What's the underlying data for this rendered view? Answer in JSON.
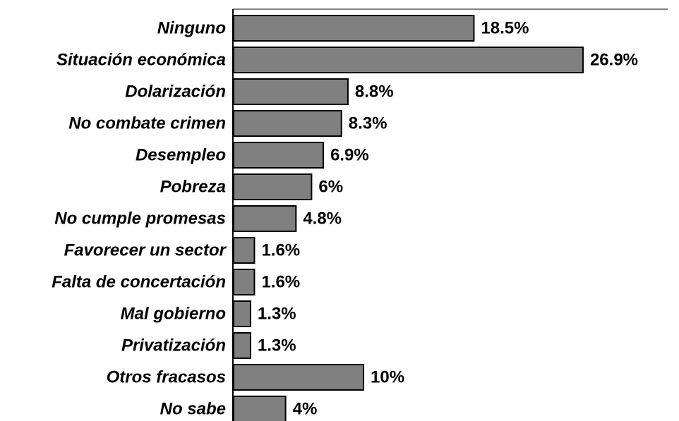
{
  "chart_data": {
    "type": "bar",
    "orientation": "horizontal",
    "categories": [
      "Ninguno",
      "Situación económica",
      "Dolarización",
      "No combate crimen",
      "Desempleo",
      "Pobreza",
      "No cumple promesas",
      "Favorecer un sector",
      "Falta de concertación",
      "Mal gobierno",
      "Privatización",
      "Otros fracasos",
      "No sabe"
    ],
    "values": [
      18.5,
      26.9,
      8.8,
      8.3,
      6.9,
      6,
      4.8,
      1.6,
      1.6,
      1.3,
      1.3,
      10,
      4
    ],
    "value_labels": [
      "18.5%",
      "26.9%",
      "8.8%",
      "8.3%",
      "6.9%",
      "6%",
      "4.8%",
      "1.6%",
      "1.6%",
      "1.3%",
      "1.3%",
      "10%",
      "4%"
    ],
    "color": "#808080"
  }
}
